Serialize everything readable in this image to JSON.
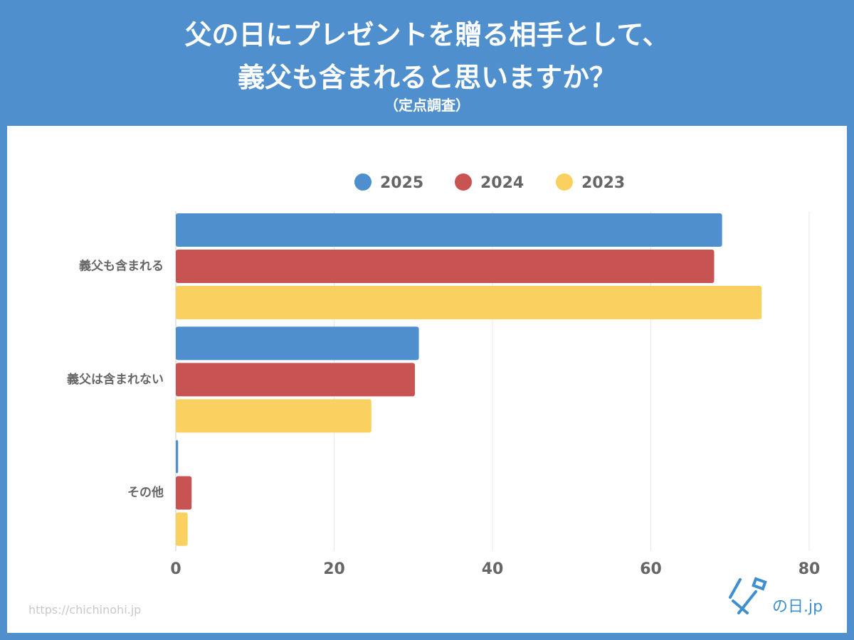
{
  "header": {
    "title_line1": "父の日にプレゼントを贈る相手として、",
    "title_line2": "義父も含まれると思いますか？",
    "subtitle": "（定点調査）"
  },
  "footer": {
    "url": "https://chichinohi.jp",
    "logo": "父の日.jp"
  },
  "chart_data": {
    "type": "bar",
    "orientation": "horizontal",
    "categories": [
      "義父も含まれる",
      "義父は含まれない",
      "その他"
    ],
    "series": [
      {
        "name": "2025",
        "color": "#4f8fcd",
        "values": [
          69,
          30.7,
          0.3
        ]
      },
      {
        "name": "2024",
        "color": "#c85353",
        "values": [
          68,
          30.2,
          2.0
        ]
      },
      {
        "name": "2023",
        "color": "#fad160",
        "values": [
          74,
          24.7,
          1.5
        ]
      }
    ],
    "xlim": [
      0,
      80
    ],
    "xticks": [
      "0",
      "20",
      "40",
      "60",
      "80"
    ],
    "grid": true,
    "legend": "top"
  }
}
